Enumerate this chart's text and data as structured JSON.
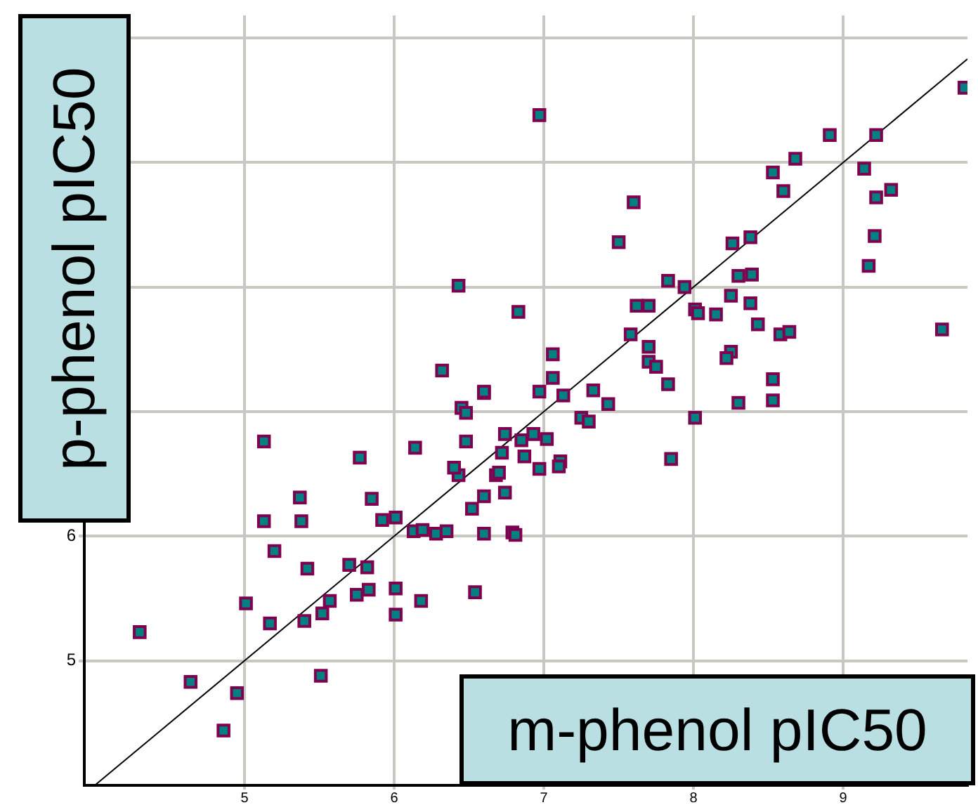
{
  "chart_data": {
    "type": "scatter",
    "xlabel": "m-phenol pIC50",
    "ylabel": "p-phenol pIC50",
    "xlim": [
      3.93,
      9.83
    ],
    "ylim": [
      4,
      10.18
    ],
    "xticks": [
      5,
      6,
      7,
      8,
      9
    ],
    "yticks": [
      5,
      6,
      {
        "value": 7,
        "label": null
      },
      {
        "value": 8,
        "label": null
      },
      {
        "value": 9,
        "label": null
      },
      {
        "value": 10,
        "label": null
      }
    ],
    "grid": true,
    "series": [
      {
        "color": "#008080",
        "marker": "square",
        "x": [
          4.3,
          4.64,
          4.95,
          4.86,
          5.01,
          5.17,
          5.13,
          5.13,
          5.38,
          5.37,
          5.2,
          5.42,
          5.4,
          5.52,
          5.57,
          5.51,
          5.7,
          5.82,
          5.75,
          5.83,
          5.77,
          5.85,
          5.92,
          6.01,
          6.01,
          6.01,
          6.18,
          6.14,
          6.13,
          6.19,
          6.28,
          6.35,
          6.54,
          6.6,
          6.79,
          6.81,
          6.6,
          6.52,
          6.74,
          6.68,
          6.7,
          6.72,
          6.74,
          6.85,
          6.87,
          6.43,
          6.4,
          6.48,
          6.45,
          6.48,
          6.6,
          6.43,
          6.83,
          7.06,
          7.06,
          6.97,
          7.13,
          6.32,
          6.6,
          7.33,
          7.43,
          7.25,
          7.3,
          6.93,
          7.02,
          6.97,
          7.11,
          7.1,
          7.85,
          8.01,
          8.3,
          7.83,
          7.7,
          7.7,
          7.75,
          7.58,
          7.62,
          7.7,
          7.83,
          7.94,
          8.01,
          8.03,
          8.15,
          8.25,
          8.38,
          8.43,
          8.25,
          8.22,
          6.97,
          7.6,
          7.5,
          8.26,
          8.38,
          8.3,
          8.39,
          8.53,
          8.6,
          8.68,
          8.91,
          9.22,
          9.14,
          9.22,
          9.32,
          9.21,
          9.17,
          9.81,
          8.58,
          8.64,
          8.53,
          8.53,
          9.66
        ],
        "values": [
          5.23,
          4.83,
          4.74,
          4.44,
          5.46,
          5.3,
          6.76,
          6.12,
          6.12,
          6.31,
          5.88,
          5.74,
          5.32,
          5.38,
          5.48,
          4.88,
          5.77,
          5.75,
          5.53,
          5.57,
          6.63,
          6.3,
          6.13,
          6.15,
          5.58,
          5.37,
          5.48,
          6.71,
          6.04,
          6.05,
          6.02,
          6.04,
          5.55,
          6.02,
          6.03,
          6.01,
          6.32,
          6.22,
          6.35,
          6.49,
          6.51,
          6.67,
          6.82,
          6.77,
          6.64,
          6.49,
          6.55,
          6.76,
          7.03,
          6.99,
          7.15,
          8.01,
          7.8,
          7.46,
          7.27,
          7.16,
          7.13,
          7.33,
          7.16,
          7.17,
          7.06,
          6.95,
          6.92,
          6.82,
          6.78,
          6.54,
          6.6,
          6.56,
          6.62,
          6.95,
          7.07,
          7.22,
          7.52,
          7.4,
          7.36,
          7.62,
          7.85,
          7.85,
          8.05,
          8.0,
          7.82,
          7.79,
          7.78,
          7.93,
          7.87,
          7.7,
          7.48,
          7.43,
          9.38,
          8.68,
          8.36,
          8.35,
          8.4,
          8.09,
          8.1,
          8.92,
          8.77,
          9.03,
          9.22,
          9.22,
          8.95,
          8.72,
          8.78,
          8.41,
          8.17,
          9.6,
          7.62,
          7.64,
          7.26,
          7.09,
          7.66
        ]
      },
      {
        "type": "line",
        "marker": "none",
        "color": "#000000",
        "x": [
          4,
          9.83
        ],
        "values": [
          4,
          9.83
        ]
      }
    ]
  }
}
